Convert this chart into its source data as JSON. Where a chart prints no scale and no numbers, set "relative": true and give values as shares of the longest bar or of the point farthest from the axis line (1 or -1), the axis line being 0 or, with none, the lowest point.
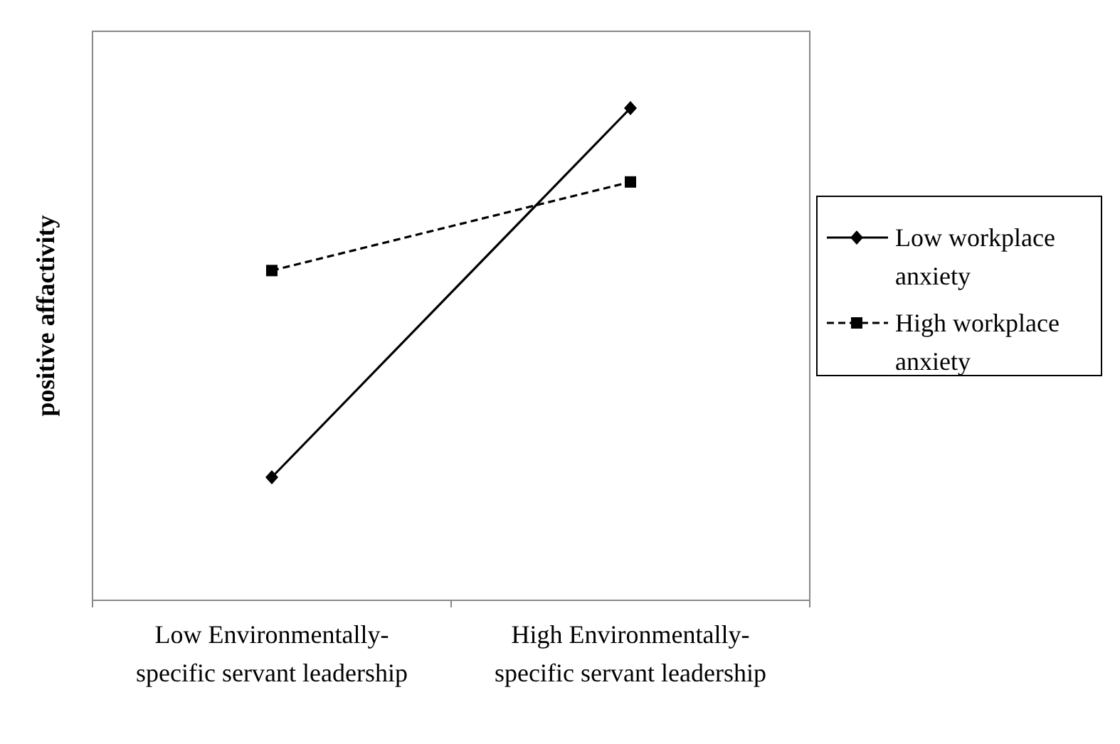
{
  "chart_data": {
    "type": "line",
    "relative": true,
    "ylabel": "positive affactivity",
    "categories": [
      "Low Environmentally-specific servant leadership",
      "High Environmentally-specific servant leadership"
    ],
    "series": [
      {
        "name": "Low workplace anxiety",
        "color": "#000000",
        "values": [
          0.25,
          1
        ],
        "marker": "diamond",
        "line_style": "solid"
      },
      {
        "name": "High workplace anxiety",
        "color": "#000000",
        "values": [
          0.67,
          0.85
        ],
        "marker": "square",
        "line_style": "dashed"
      }
    ],
    "legend": "right"
  }
}
